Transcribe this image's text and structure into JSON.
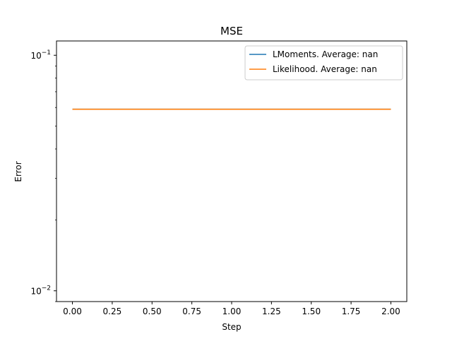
{
  "chart_data": {
    "type": "line",
    "title": "MSE",
    "xlabel": "Step",
    "ylabel": "Error",
    "yscale": "log",
    "xlim": [
      -0.1,
      2.1
    ],
    "ylim": [
      0.009,
      0.115
    ],
    "x_ticks": [
      0.0,
      0.25,
      0.5,
      0.75,
      1.0,
      1.25,
      1.5,
      1.75,
      2.0
    ],
    "x_tick_labels": [
      "0.00",
      "0.25",
      "0.50",
      "0.75",
      "1.00",
      "1.25",
      "1.50",
      "1.75",
      "2.00"
    ],
    "y_ticks": [
      {
        "value": 0.01,
        "base": "10",
        "exp": "−2"
      },
      {
        "value": 0.1,
        "base": "10",
        "exp": "−1"
      }
    ],
    "grid": false,
    "legend_position": "top-right",
    "series": [
      {
        "name": "LMoments. Average: nan",
        "color": "#1f77b4",
        "x": [
          0,
          1,
          2
        ],
        "y": [
          0.059,
          0.059,
          0.059
        ]
      },
      {
        "name": "Likelihood. Average: nan",
        "color": "#ff7f0e",
        "x": [
          0,
          1,
          2
        ],
        "y": [
          0.059,
          0.059,
          0.059
        ]
      }
    ]
  }
}
